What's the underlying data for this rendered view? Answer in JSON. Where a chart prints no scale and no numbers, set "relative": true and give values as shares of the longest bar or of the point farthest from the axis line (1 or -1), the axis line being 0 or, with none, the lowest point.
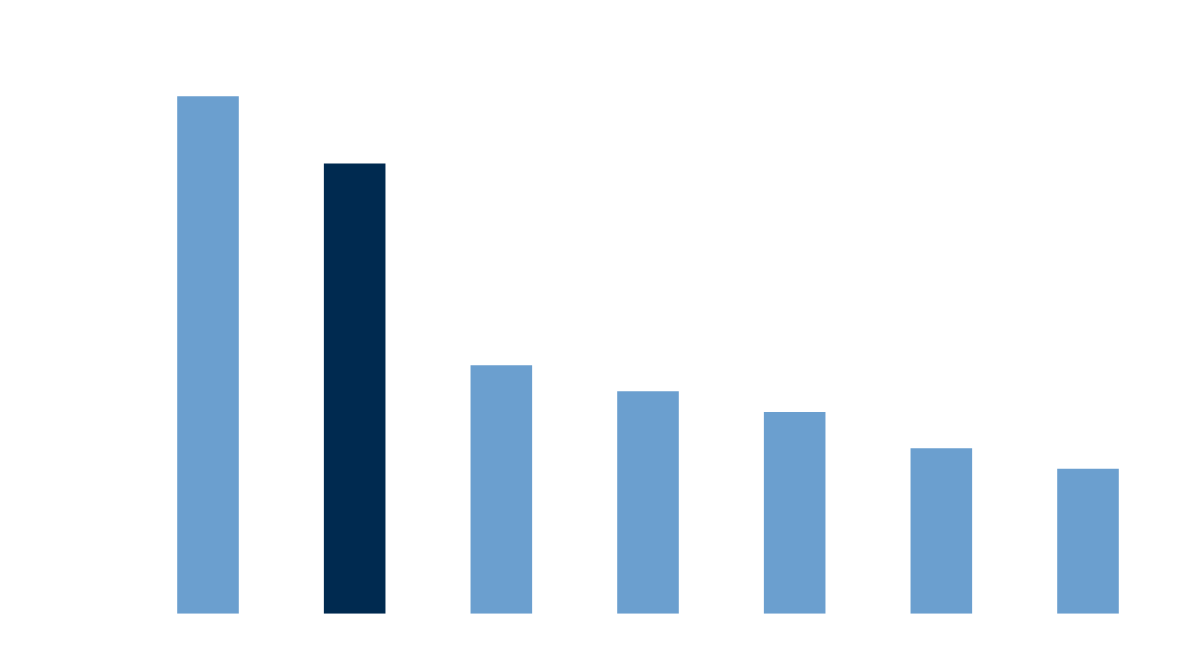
{
  "chart_data": {
    "type": "bar",
    "relative": true,
    "categories": [
      null,
      null,
      null,
      null,
      null,
      null,
      null
    ],
    "values": [
      1,
      0.87,
      0.48,
      0.43,
      0.39,
      0.32,
      0.28
    ],
    "colors": [
      "#6b9fcf",
      "#002a50",
      "#6b9fcf",
      "#6b9fcf",
      "#6b9fcf",
      "#6b9fcf",
      "#6b9fcf"
    ],
    "grid": false,
    "legend": false
  }
}
